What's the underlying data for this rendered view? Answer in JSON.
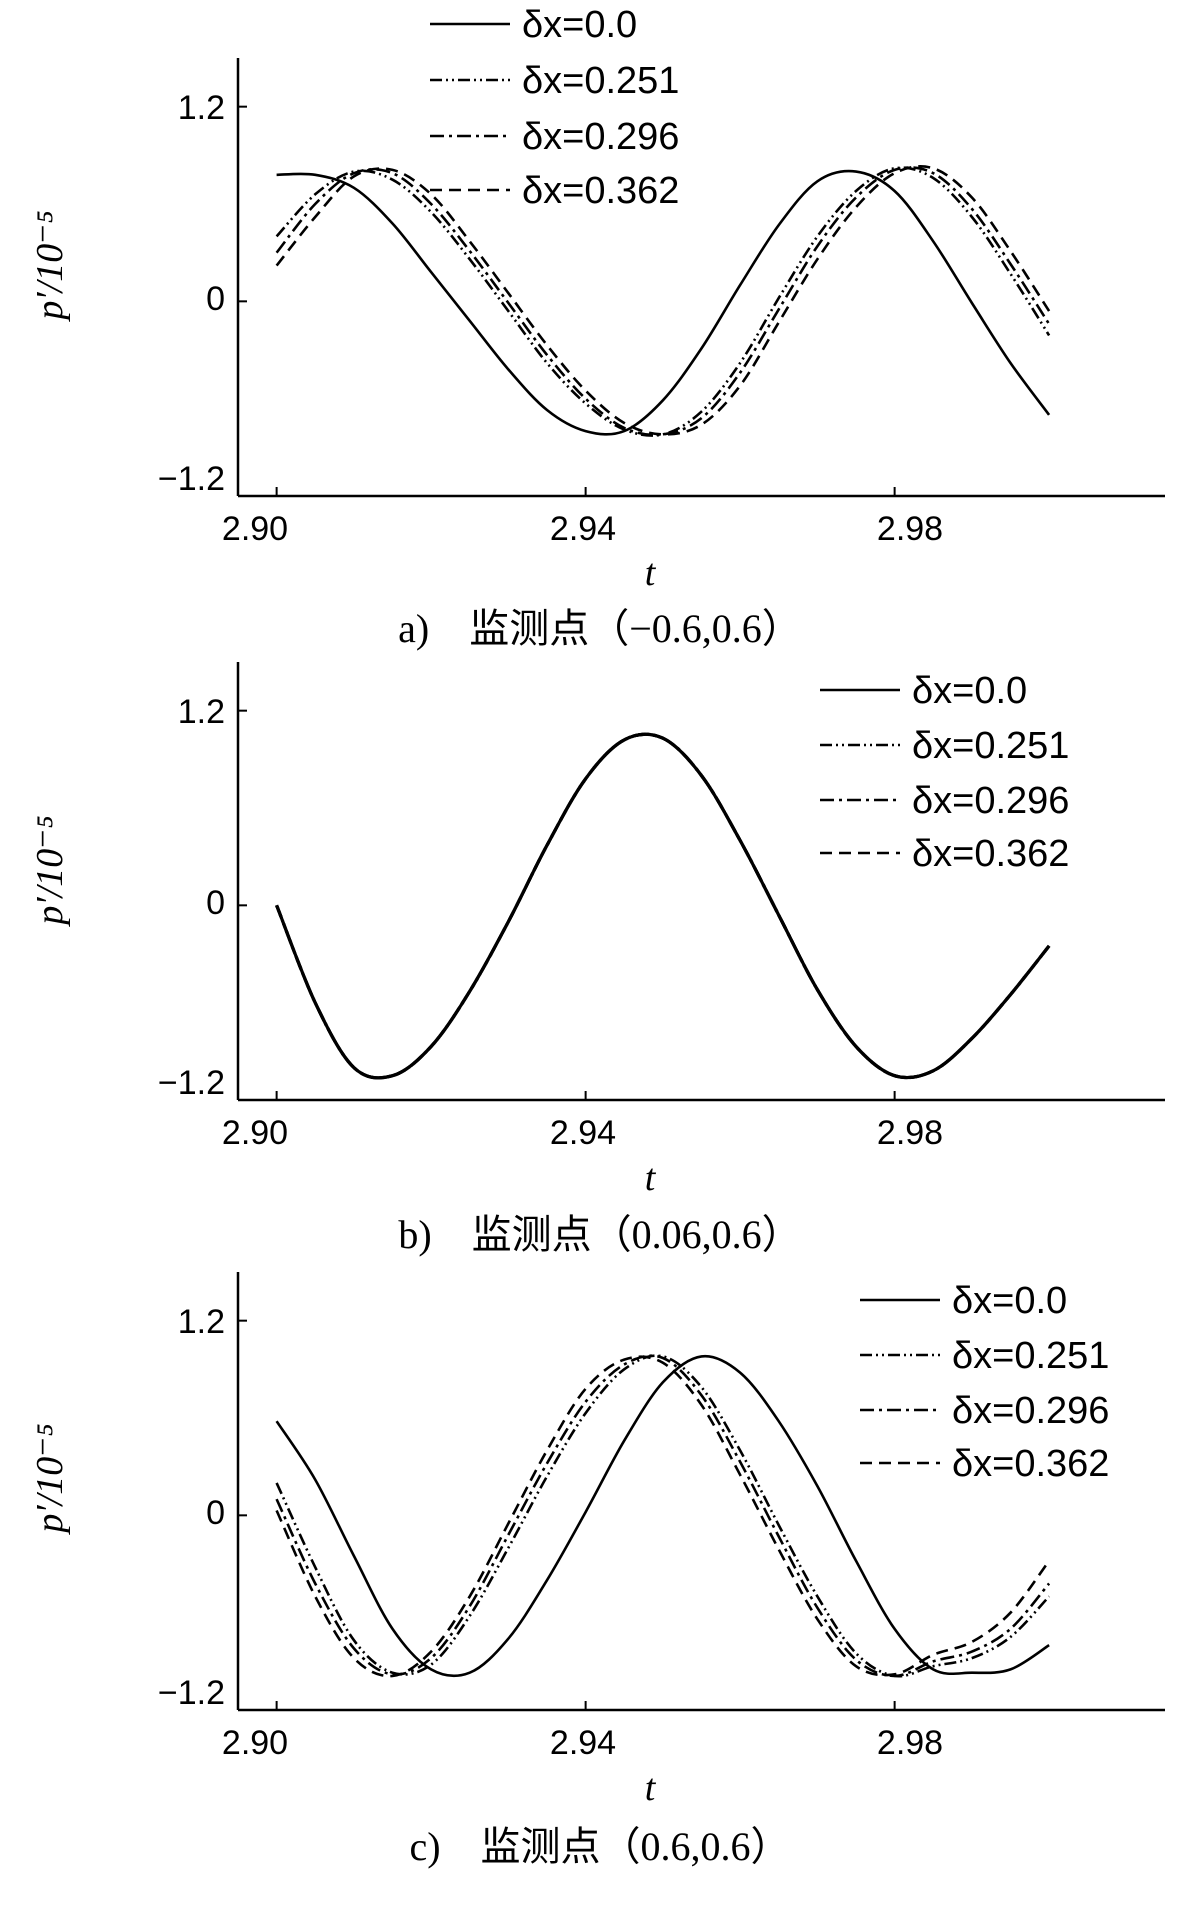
{
  "chart_data": [
    {
      "type": "line",
      "caption": "a)　监测点（−0.6,0.6）",
      "xlabel": "t",
      "ylabel": "p′/10⁻⁵",
      "xlim": [
        2.895,
        3.015
      ],
      "ylim": [
        -1.2,
        1.5
      ],
      "xticks": [
        2.9,
        2.94,
        2.98
      ],
      "xtick_labels": [
        "2.90",
        "2.94",
        "2.98"
      ],
      "yticks": [
        1.2,
        0,
        -1.2
      ],
      "ytick_labels": [
        "1.2",
        "0",
        "−1.2"
      ],
      "grid": false,
      "legend_position": "top-center",
      "series": [
        {
          "name": "δx=0.0",
          "style": "solid",
          "x": [
            2.9,
            2.905,
            2.91,
            2.915,
            2.92,
            2.925,
            2.93,
            2.935,
            2.94,
            2.945,
            2.95,
            2.955,
            2.96,
            2.965,
            2.97,
            2.975,
            2.98,
            2.985,
            2.99,
            2.995,
            3.0
          ],
          "y": [
            0.78,
            0.78,
            0.7,
            0.48,
            0.18,
            -0.12,
            -0.42,
            -0.67,
            -0.8,
            -0.8,
            -0.61,
            -0.29,
            0.1,
            0.47,
            0.74,
            0.8,
            0.68,
            0.37,
            -0.01,
            -0.38,
            -0.7
          ]
        },
        {
          "name": "δx=0.251",
          "style": "dash-dot-dot",
          "x": [
            2.9,
            2.905,
            2.91,
            2.915,
            2.92,
            2.925,
            2.93,
            2.935,
            2.94,
            2.945,
            2.95,
            2.955,
            2.96,
            2.965,
            2.97,
            2.975,
            2.98,
            2.985,
            2.99,
            2.995,
            3.0
          ],
          "y": [
            0.4,
            0.66,
            0.8,
            0.75,
            0.55,
            0.26,
            -0.06,
            -0.38,
            -0.63,
            -0.79,
            -0.82,
            -0.68,
            -0.38,
            0.02,
            0.4,
            0.68,
            0.82,
            0.76,
            0.52,
            0.17,
            -0.21
          ]
        },
        {
          "name": "δx=0.296",
          "style": "dash-dot",
          "x": [
            2.9,
            2.905,
            2.91,
            2.915,
            2.92,
            2.925,
            2.93,
            2.935,
            2.94,
            2.945,
            2.95,
            2.955,
            2.96,
            2.965,
            2.97,
            2.975,
            2.98,
            2.985,
            2.99,
            2.995,
            3.0
          ],
          "y": [
            0.3,
            0.6,
            0.79,
            0.79,
            0.6,
            0.31,
            -0.01,
            -0.33,
            -0.6,
            -0.78,
            -0.82,
            -0.72,
            -0.44,
            -0.05,
            0.34,
            0.64,
            0.81,
            0.79,
            0.57,
            0.23,
            -0.14
          ]
        },
        {
          "name": "δx=0.362",
          "style": "dashed",
          "x": [
            2.9,
            2.905,
            2.91,
            2.915,
            2.92,
            2.925,
            2.93,
            2.935,
            2.94,
            2.945,
            2.95,
            2.955,
            2.96,
            2.965,
            2.97,
            2.975,
            2.98,
            2.985,
            2.99,
            2.995,
            3.0
          ],
          "y": [
            0.22,
            0.52,
            0.77,
            0.81,
            0.66,
            0.37,
            0.05,
            -0.27,
            -0.55,
            -0.75,
            -0.82,
            -0.76,
            -0.52,
            -0.13,
            0.26,
            0.58,
            0.79,
            0.82,
            0.64,
            0.31,
            -0.06
          ]
        }
      ]
    },
    {
      "type": "line",
      "caption": "b)　监测点（0.06,0.6）",
      "xlabel": "t",
      "ylabel": "p′/10⁻⁵",
      "xlim": [
        2.895,
        3.015
      ],
      "ylim": [
        -1.2,
        1.5
      ],
      "xticks": [
        2.9,
        2.94,
        2.98
      ],
      "xtick_labels": [
        "2.90",
        "2.94",
        "2.98"
      ],
      "yticks": [
        1.2,
        0,
        -1.2
      ],
      "ytick_labels": [
        "1.2",
        "0",
        "−1.2"
      ],
      "grid": false,
      "legend_position": "top-right",
      "series": [
        {
          "name": "δx=0.0",
          "style": "solid",
          "x": [
            2.9,
            2.905,
            2.91,
            2.915,
            2.92,
            2.925,
            2.93,
            2.935,
            2.94,
            2.945,
            2.95,
            2.955,
            2.96,
            2.965,
            2.97,
            2.975,
            2.98,
            2.985,
            2.99,
            2.995,
            3.0
          ],
          "y": [
            0.0,
            -0.6,
            -1.0,
            -1.05,
            -0.87,
            -0.53,
            -0.1,
            0.37,
            0.78,
            1.02,
            1.03,
            0.8,
            0.4,
            -0.06,
            -0.52,
            -0.87,
            -1.05,
            -1.02,
            -0.82,
            -0.55,
            -0.25
          ]
        },
        {
          "name": "δx=0.251",
          "style": "dash-dot-dot",
          "x": [
            2.9,
            2.905,
            2.91,
            2.915,
            2.92,
            2.925,
            2.93,
            2.935,
            2.94,
            2.945,
            2.95,
            2.955,
            2.96,
            2.965,
            2.97,
            2.975,
            2.98,
            2.985,
            2.99,
            2.995,
            3.0
          ],
          "y": [
            0.0,
            -0.6,
            -1.0,
            -1.05,
            -0.87,
            -0.53,
            -0.1,
            0.37,
            0.78,
            1.02,
            1.03,
            0.8,
            0.4,
            -0.06,
            -0.52,
            -0.87,
            -1.05,
            -1.02,
            -0.82,
            -0.55,
            -0.25
          ]
        },
        {
          "name": "δx=0.296",
          "style": "dash-dot",
          "x": [
            2.9,
            2.905,
            2.91,
            2.915,
            2.92,
            2.925,
            2.93,
            2.935,
            2.94,
            2.945,
            2.95,
            2.955,
            2.96,
            2.965,
            2.97,
            2.975,
            2.98,
            2.985,
            2.99,
            2.995,
            3.0
          ],
          "y": [
            0.0,
            -0.6,
            -1.0,
            -1.05,
            -0.87,
            -0.53,
            -0.1,
            0.37,
            0.78,
            1.02,
            1.03,
            0.8,
            0.4,
            -0.06,
            -0.52,
            -0.87,
            -1.05,
            -1.02,
            -0.82,
            -0.55,
            -0.25
          ]
        },
        {
          "name": "δx=0.362",
          "style": "dashed",
          "x": [
            2.9,
            2.905,
            2.91,
            2.915,
            2.92,
            2.925,
            2.93,
            2.935,
            2.94,
            2.945,
            2.95,
            2.955,
            2.96,
            2.965,
            2.97,
            2.975,
            2.98,
            2.985,
            2.99,
            2.995,
            3.0
          ],
          "y": [
            0.0,
            -0.6,
            -1.0,
            -1.05,
            -0.87,
            -0.53,
            -0.1,
            0.37,
            0.78,
            1.02,
            1.03,
            0.8,
            0.4,
            -0.06,
            -0.52,
            -0.87,
            -1.05,
            -1.02,
            -0.82,
            -0.55,
            -0.25
          ]
        }
      ]
    },
    {
      "type": "line",
      "caption": "c)　监测点（0.6,0.6）",
      "xlabel": "t",
      "ylabel": "p′/10⁻⁵",
      "xlim": [
        2.895,
        3.015
      ],
      "ylim": [
        -1.2,
        1.5
      ],
      "xticks": [
        2.9,
        2.94,
        2.98
      ],
      "xtick_labels": [
        "2.90",
        "2.94",
        "2.98"
      ],
      "yticks": [
        1.2,
        0,
        -1.2
      ],
      "ytick_labels": [
        "1.2",
        "0",
        "−1.2"
      ],
      "grid": false,
      "legend_position": "top-right",
      "series": [
        {
          "name": "δx=0.0",
          "style": "solid",
          "x": [
            2.9,
            2.905,
            2.91,
            2.915,
            2.92,
            2.925,
            2.93,
            2.935,
            2.94,
            2.945,
            2.95,
            2.955,
            2.96,
            2.965,
            2.97,
            2.975,
            2.98,
            2.985,
            2.99,
            2.995,
            3.0
          ],
          "y": [
            0.58,
            0.22,
            -0.25,
            -0.7,
            -0.95,
            -0.97,
            -0.76,
            -0.4,
            0.02,
            0.46,
            0.82,
            0.98,
            0.88,
            0.58,
            0.18,
            -0.28,
            -0.7,
            -0.95,
            -0.97,
            -0.95,
            -0.8
          ]
        },
        {
          "name": "δx=0.251",
          "style": "dash-dot-dot",
          "x": [
            2.9,
            2.905,
            2.91,
            2.915,
            2.92,
            2.925,
            2.93,
            2.935,
            2.94,
            2.945,
            2.95,
            2.955,
            2.96,
            2.965,
            2.97,
            2.975,
            2.98,
            2.985,
            2.99,
            2.995,
            3.0
          ],
          "y": [
            0.2,
            -0.32,
            -0.77,
            -0.97,
            -0.92,
            -0.62,
            -0.2,
            0.24,
            0.63,
            0.9,
            0.98,
            0.79,
            0.4,
            -0.06,
            -0.5,
            -0.85,
            -0.99,
            -0.93,
            -0.88,
            -0.75,
            -0.5
          ]
        },
        {
          "name": "δx=0.296",
          "style": "dash-dot",
          "x": [
            2.9,
            2.905,
            2.91,
            2.915,
            2.92,
            2.925,
            2.93,
            2.935,
            2.94,
            2.945,
            2.95,
            2.955,
            2.96,
            2.965,
            2.97,
            2.975,
            2.98,
            2.985,
            2.99,
            2.995,
            3.0
          ],
          "y": [
            0.1,
            -0.42,
            -0.82,
            -0.98,
            -0.88,
            -0.56,
            -0.12,
            0.32,
            0.7,
            0.93,
            0.97,
            0.74,
            0.33,
            -0.13,
            -0.57,
            -0.89,
            -0.99,
            -0.9,
            -0.84,
            -0.7,
            -0.42
          ]
        },
        {
          "name": "δx=0.362",
          "style": "dashed",
          "x": [
            2.9,
            2.905,
            2.91,
            2.915,
            2.92,
            2.925,
            2.93,
            2.935,
            2.94,
            2.945,
            2.95,
            2.955,
            2.96,
            2.965,
            2.97,
            2.975,
            2.98,
            2.985,
            2.99,
            2.995,
            3.0
          ],
          "y": [
            0.03,
            -0.5,
            -0.88,
            -0.99,
            -0.84,
            -0.5,
            -0.05,
            0.4,
            0.78,
            0.96,
            0.94,
            0.68,
            0.25,
            -0.21,
            -0.64,
            -0.93,
            -0.98,
            -0.86,
            -0.78,
            -0.6,
            -0.28
          ]
        }
      ]
    }
  ]
}
